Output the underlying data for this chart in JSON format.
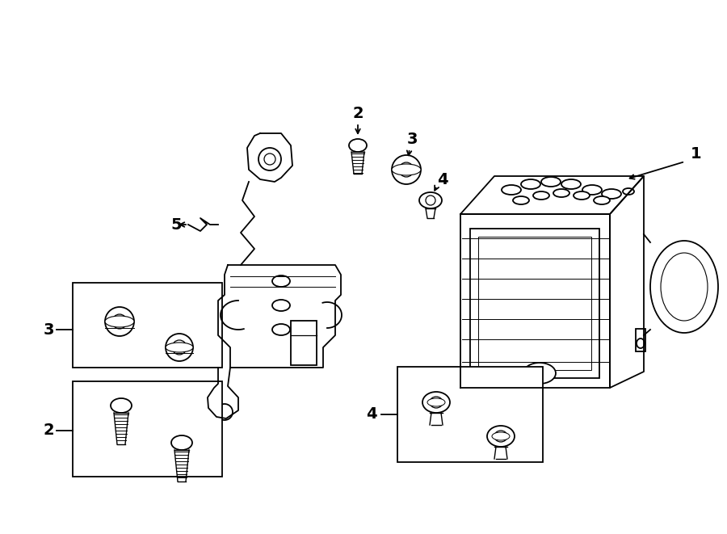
{
  "bg_color": "#ffffff",
  "line_color": "#000000",
  "fig_width": 9.0,
  "fig_height": 6.61,
  "lw": 1.3
}
